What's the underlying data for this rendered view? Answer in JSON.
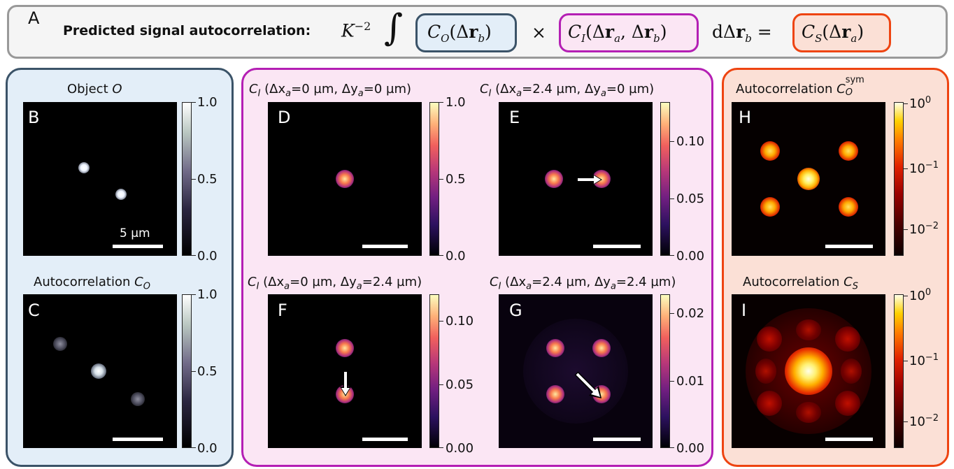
{
  "panel_A": {
    "letter": "A",
    "heading": "Predicted signal autocorrelation:",
    "prefactor_base": "K",
    "prefactor_exp": "−2",
    "integral": "∫",
    "term_CO": "C_O(Δr_b)",
    "times": "×",
    "term_CI": "C_I(Δr_a, Δr_b)",
    "differential": "dΔr_b =",
    "term_CS": "C_S(Δr_a)"
  },
  "colors": {
    "blue_border": "#3b5368",
    "blue_fill": "#e3eef8",
    "magenta_border": "#b41fb4",
    "magenta_fill": "#fbe6f4",
    "orange_border": "#ee4411",
    "orange_fill": "#fbe0d6",
    "gray_border": "#999999",
    "gray_fill": "#f5f5f5"
  },
  "panels": {
    "B": {
      "letter": "B",
      "title": "Object O",
      "ticks": [
        "1.0",
        "0.5",
        "0.0"
      ],
      "scalebar": "5 µm"
    },
    "C": {
      "letter": "C",
      "title": "Autocorrelation C_O",
      "ticks": [
        "1.0",
        "0.5",
        "0.0"
      ]
    },
    "D": {
      "letter": "D",
      "title": "C_I (Δx_a=0 µm, Δy_a=0 µm)",
      "ticks": [
        "1.0",
        "0.5",
        "0.0"
      ]
    },
    "E": {
      "letter": "E",
      "title": "C_I (Δx_a=2.4 µm, Δy_a=0 µm)",
      "ticks": [
        "0.10",
        "0.05",
        "0.00"
      ]
    },
    "F": {
      "letter": "F",
      "title": "C_I (Δx_a=0 µm, Δy_a=2.4 µm)",
      "ticks": [
        "0.10",
        "0.05",
        "0.00"
      ]
    },
    "G": {
      "letter": "G",
      "title": "C_I (Δx_a=2.4 µm, Δy_a=2.4 µm)",
      "ticks": [
        "0.02",
        "0.01",
        "0.00"
      ]
    },
    "H": {
      "letter": "H",
      "title": "Autocorrelation C_O^sym",
      "ticks": [
        "10^0",
        "10^−1",
        "10^−2"
      ]
    },
    "I": {
      "letter": "I",
      "title": "Autocorrelation C_S",
      "ticks": [
        "10^0",
        "10^−1",
        "10^−2"
      ]
    }
  },
  "tick_parts": {
    "base": "10",
    "exp0": "0",
    "exp1": "−1",
    "exp2": "−2"
  },
  "title_parts": {
    "B_main": "Object ",
    "B_sym": "O",
    "C_main": "Autocorrelation ",
    "C_sym": "C",
    "C_sub": "O",
    "H_main": "Autocorrelation ",
    "H_sym": "C",
    "H_sub": "O",
    "H_sup": "sym",
    "I_main": "Autocorrelation ",
    "I_sym": "C",
    "I_sub": "S",
    "CI_sym": "C",
    "CI_sub": "I",
    "D_rest1": " (Δx",
    "D_sub1": "a",
    "D_rest2": "=0 µm, Δy",
    "D_sub2": "a",
    "D_rest3": "=0 µm)",
    "E_rest1": " (Δx",
    "E_sub1": "a",
    "E_rest2": "=2.4 µm, Δy",
    "E_sub2": "a",
    "E_rest3": "=0 µm)",
    "F_rest1": " (Δx",
    "F_sub1": "a",
    "F_rest2": "=0 µm, Δy",
    "F_sub2": "a",
    "F_rest3": "=2.4 µm)",
    "G_rest1": " (Δx",
    "G_sub1": "a",
    "G_rest2": "=2.4 µm, Δy",
    "G_sub2": "a",
    "G_rest3": "=2.4 µm)"
  },
  "eq_parts": {
    "CO_c": "C",
    "CO_sub": "O",
    "CO_arg": "(Δ",
    "CO_r": "r",
    "CO_b": "b",
    "CO_close": ")",
    "CI_c": "C",
    "CI_sub": "I",
    "CI_arg": "(Δ",
    "CI_r1": "r",
    "CI_a": "a",
    "CI_mid": ", Δ",
    "CI_r2": "r",
    "CI_b": "b",
    "CI_close": ")",
    "d_pre": "dΔ",
    "d_r": "r",
    "d_b": "b",
    "d_eq": " =",
    "CS_c": "C",
    "CS_sub": "S",
    "CS_arg": "(Δ",
    "CS_r": "r",
    "CS_a": "a",
    "CS_close": ")"
  }
}
